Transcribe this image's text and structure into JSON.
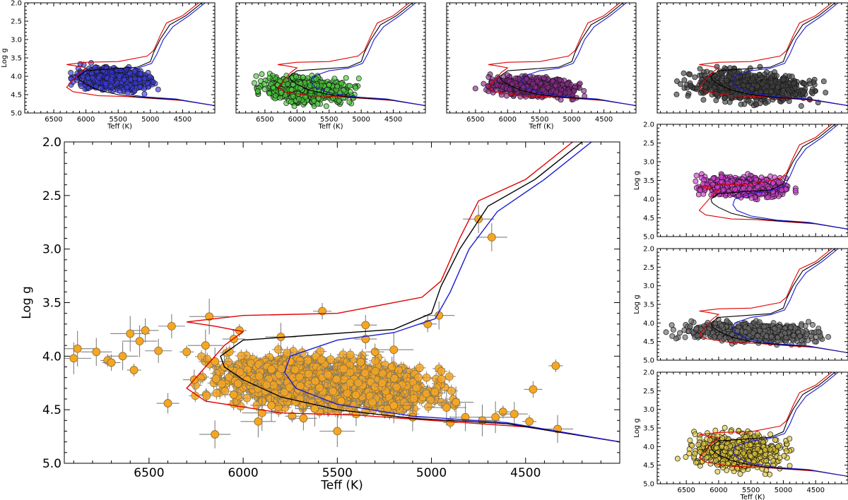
{
  "chart_data": [
    {
      "type": "scatter",
      "panel": "main",
      "xlabel": "Teff (K)",
      "ylabel": "Log g",
      "xlim": [
        6950,
        4000
      ],
      "ylim": [
        5.0,
        2.0
      ],
      "xticks": [
        6500,
        6000,
        5500,
        5000,
        4500
      ],
      "yticks": [
        2.0,
        2.5,
        3.0,
        3.5,
        4.0,
        4.5,
        5.0
      ],
      "marker_color": "#f5a623",
      "error_bar_color": "#808080",
      "dense_cloud": {
        "teff_range": [
          6300,
          4800
        ],
        "logg_range": [
          3.9,
          4.6
        ]
      },
      "points": [
        [
          6900,
          4.02
        ],
        [
          6880,
          3.93
        ],
        [
          6780,
          3.96
        ],
        [
          6720,
          4.04
        ],
        [
          6700,
          4.06
        ],
        [
          6640,
          4.0
        ],
        [
          6600,
          3.79
        ],
        [
          6580,
          4.13
        ],
        [
          6550,
          3.86
        ],
        [
          6520,
          3.76
        ],
        [
          6450,
          3.95
        ],
        [
          6400,
          4.44
        ],
        [
          6380,
          3.72
        ],
        [
          6300,
          3.96
        ],
        [
          6200,
          3.9
        ],
        [
          6180,
          3.63
        ],
        [
          6150,
          4.05
        ],
        [
          6100,
          4.1
        ],
        [
          6050,
          3.84
        ],
        [
          6020,
          3.76
        ],
        [
          5980,
          4.22
        ],
        [
          5920,
          4.61
        ],
        [
          5900,
          4.53
        ],
        [
          5850,
          4.46
        ],
        [
          5800,
          3.82
        ],
        [
          5750,
          4.05
        ],
        [
          5620,
          4.49
        ],
        [
          5580,
          3.58
        ],
        [
          5550,
          4.4
        ],
        [
          5500,
          4.7
        ],
        [
          5480,
          4.42
        ],
        [
          5350,
          3.84
        ],
        [
          5350,
          3.71
        ],
        [
          5300,
          3.96
        ],
        [
          5210,
          4.1
        ],
        [
          5200,
          3.94
        ],
        [
          5020,
          3.7
        ],
        [
          4960,
          3.62
        ],
        [
          4920,
          4.48
        ],
        [
          4870,
          4.43
        ],
        [
          4820,
          4.57
        ],
        [
          4750,
          2.72
        ],
        [
          4680,
          2.89
        ],
        [
          4660,
          4.57
        ],
        [
          4620,
          4.52
        ],
        [
          4560,
          4.54
        ],
        [
          4480,
          4.61
        ],
        [
          4460,
          4.31
        ],
        [
          4340,
          4.09
        ],
        [
          4330,
          4.68
        ],
        [
          6150,
          4.73
        ],
        [
          6260,
          4.22
        ],
        [
          5740,
          4.56
        ],
        [
          5400,
          4.54
        ],
        [
          5200,
          4.46
        ],
        [
          5100,
          4.57
        ],
        [
          4900,
          4.62
        ],
        [
          4730,
          4.6
        ],
        [
          5680,
          4.58
        ],
        [
          6050,
          4.36
        ]
      ]
    },
    {
      "type": "scatter",
      "panel": "top-1",
      "xlabel": "Teff (K)",
      "ylabel": "Log g",
      "xlim": [
        6950,
        4000
      ],
      "ylim": [
        5.0,
        2.0
      ],
      "xticks": [
        6500,
        6000,
        5500,
        5000,
        4500
      ],
      "yticks": [
        2.0,
        2.5,
        3.0,
        3.5,
        4.0,
        4.5,
        5.0
      ],
      "marker_color": "#3c3ce0",
      "cloud": {
        "teff_range": [
          6350,
          4800
        ],
        "logg_range": [
          3.6,
          4.55
        ]
      }
    },
    {
      "type": "scatter",
      "panel": "top-2",
      "xlabel": "Teff (K)",
      "xlim": [
        6950,
        4000
      ],
      "ylim": [
        5.0,
        2.0
      ],
      "xticks": [
        6500,
        6000,
        5500,
        5000,
        4500
      ],
      "marker_color": "#4ccd3c",
      "cloud": {
        "teff_range": [
          6800,
          4900
        ],
        "logg_range": [
          3.8,
          4.95
        ]
      }
    },
    {
      "type": "scatter",
      "panel": "top-3",
      "xlabel": "Teff (K)",
      "xlim": [
        6950,
        4000
      ],
      "ylim": [
        5.0,
        2.0
      ],
      "xticks": [
        6500,
        6000,
        5500,
        5000,
        4500
      ],
      "marker_color": "#8c2a8c",
      "cloud": {
        "teff_range": [
          6600,
          4600
        ],
        "logg_range": [
          3.9,
          4.7
        ]
      }
    },
    {
      "type": "scatter",
      "panel": "top-4",
      "xlim": [
        6950,
        4000
      ],
      "ylim": [
        5.0,
        2.0
      ],
      "marker_color": "#404040",
      "cloud": {
        "teff_range": [
          6900,
          4200
        ],
        "logg_range": [
          3.6,
          4.95
        ]
      }
    },
    {
      "type": "scatter",
      "panel": "right-1",
      "ylabel": "Log g",
      "xlim": [
        6950,
        4000
      ],
      "ylim": [
        5.0,
        2.0
      ],
      "yticks": [
        2.0,
        2.5,
        3.0,
        3.5,
        4.0,
        4.5,
        5.0
      ],
      "marker_color": "#d63fd6",
      "cloud": {
        "teff_range": [
          6500,
          4700
        ],
        "logg_range": [
          3.25,
          4.1
        ]
      }
    },
    {
      "type": "scatter",
      "panel": "right-2",
      "ylabel": "Log g",
      "xlim": [
        6950,
        4000
      ],
      "ylim": [
        5.0,
        2.0
      ],
      "yticks": [
        2.0,
        2.5,
        3.0,
        3.5,
        4.0,
        4.5,
        5.0
      ],
      "marker_color": "#6a6a6a",
      "cloud": {
        "teff_range": [
          6950,
          4050
        ],
        "logg_range": [
          3.85,
          4.65
        ]
      }
    },
    {
      "type": "scatter",
      "panel": "right-3",
      "xlabel": "Teff (K)",
      "ylabel": "Log g",
      "xlim": [
        6950,
        4000
      ],
      "ylim": [
        5.0,
        2.0
      ],
      "xticks": [
        6500,
        6000,
        5500,
        5000,
        4500
      ],
      "yticks": [
        2.0,
        2.5,
        3.0,
        3.5,
        4.0,
        4.5,
        5.0
      ],
      "marker_color": "#e0c83a",
      "cloud": {
        "teff_range": [
          6700,
          4700
        ],
        "logg_range": [
          3.4,
          4.85
        ]
      }
    }
  ],
  "isochrones": [
    {
      "color": "#e00000",
      "points": [
        [
          4250,
          2.0
        ],
        [
          4500,
          2.35
        ],
        [
          4750,
          2.55
        ],
        [
          4850,
          2.9
        ],
        [
          4950,
          3.3
        ],
        [
          5050,
          3.45
        ],
        [
          5500,
          3.6
        ],
        [
          6000,
          3.62
        ],
        [
          6200,
          3.66
        ],
        [
          6300,
          3.68
        ],
        [
          6150,
          3.72
        ],
        [
          6000,
          3.77
        ],
        [
          6100,
          3.9
        ],
        [
          6200,
          4.1
        ],
        [
          6300,
          4.3
        ],
        [
          6200,
          4.42
        ],
        [
          5800,
          4.53
        ],
        [
          5400,
          4.55
        ],
        [
          5000,
          4.6
        ],
        [
          4500,
          4.66
        ],
        [
          4000,
          4.8
        ]
      ]
    },
    {
      "color": "#000000",
      "points": [
        [
          4200,
          2.0
        ],
        [
          4450,
          2.35
        ],
        [
          4700,
          2.6
        ],
        [
          4850,
          3.0
        ],
        [
          4950,
          3.35
        ],
        [
          5000,
          3.6
        ],
        [
          5200,
          3.75
        ],
        [
          5600,
          3.8
        ],
        [
          6000,
          3.85
        ],
        [
          6120,
          4.0
        ],
        [
          6100,
          4.1
        ],
        [
          6000,
          4.22
        ],
        [
          5800,
          4.38
        ],
        [
          5500,
          4.5
        ],
        [
          5100,
          4.58
        ],
        [
          4600,
          4.63
        ],
        [
          4000,
          4.8
        ]
      ]
    },
    {
      "color": "#1a1ad0",
      "points": [
        [
          4150,
          2.0
        ],
        [
          4400,
          2.35
        ],
        [
          4650,
          2.65
        ],
        [
          4800,
          3.0
        ],
        [
          4900,
          3.4
        ],
        [
          4980,
          3.65
        ],
        [
          5200,
          3.78
        ],
        [
          5500,
          3.85
        ],
        [
          5750,
          4.0
        ],
        [
          5780,
          4.15
        ],
        [
          5720,
          4.3
        ],
        [
          5500,
          4.45
        ],
        [
          5100,
          4.56
        ],
        [
          4600,
          4.62
        ],
        [
          4000,
          4.8
        ]
      ]
    }
  ]
}
